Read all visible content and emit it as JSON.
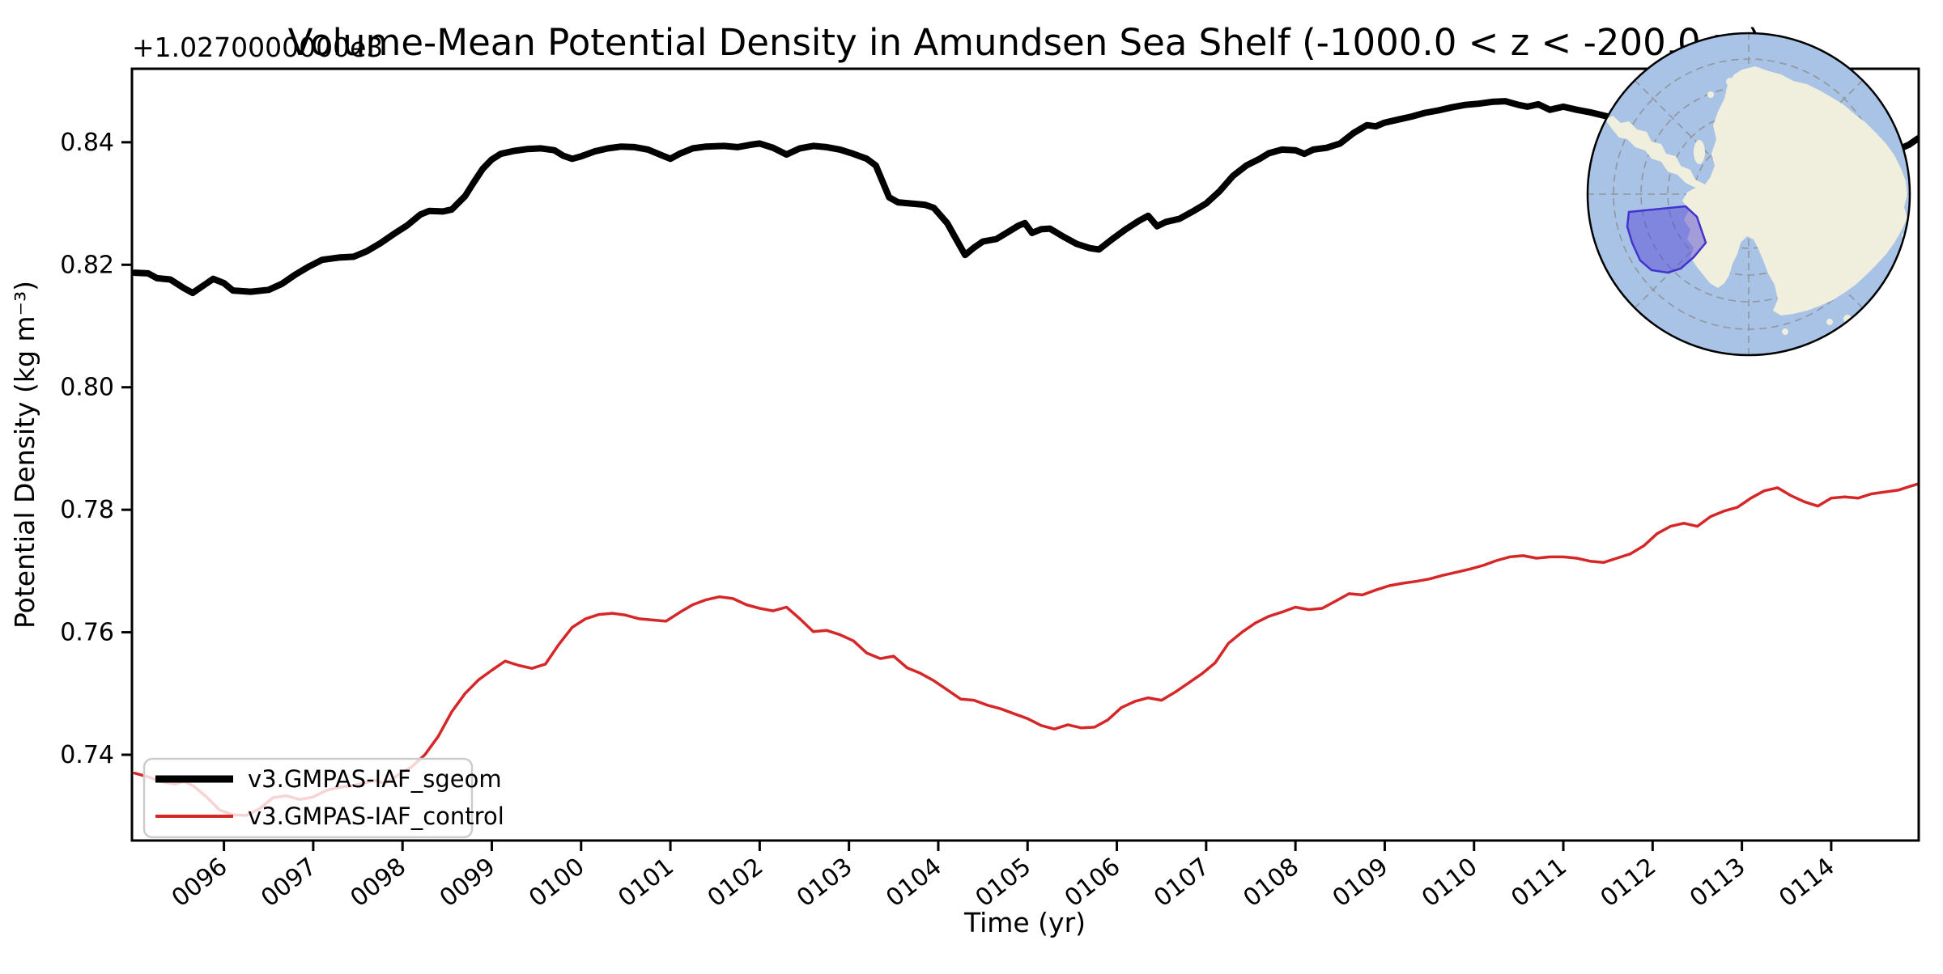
{
  "chart_data": {
    "type": "line",
    "title": "Volume-Mean Potential Density in Amundsen Sea Shelf (-1000.0 < z < -200.0 m)",
    "xlabel": "Time (yr)",
    "ylabel": "Potential Density (kg m⁻³)",
    "y_offset_text": "+1.0270000000e3",
    "grid": false,
    "legend_position": "lower-left",
    "xlim": [
      94.97,
      114.98
    ],
    "ylim": [
      0.726,
      0.852
    ],
    "x_tick_rotation_deg": -38,
    "x_ticks": [
      {
        "label": "0096",
        "value": 96
      },
      {
        "label": "0097",
        "value": 97
      },
      {
        "label": "0098",
        "value": 98
      },
      {
        "label": "0099",
        "value": 99
      },
      {
        "label": "0100",
        "value": 100
      },
      {
        "label": "0101",
        "value": 101
      },
      {
        "label": "0102",
        "value": 102
      },
      {
        "label": "0103",
        "value": 103
      },
      {
        "label": "0104",
        "value": 104
      },
      {
        "label": "0105",
        "value": 105
      },
      {
        "label": "0106",
        "value": 106
      },
      {
        "label": "0107",
        "value": 107
      },
      {
        "label": "0108",
        "value": 108
      },
      {
        "label": "0109",
        "value": 109
      },
      {
        "label": "0110",
        "value": 110
      },
      {
        "label": "0111",
        "value": 111
      },
      {
        "label": "0112",
        "value": 112
      },
      {
        "label": "0113",
        "value": 113
      },
      {
        "label": "0114",
        "value": 114
      }
    ],
    "y_ticks": [
      {
        "label": "0.84",
        "value": 0.84
      },
      {
        "label": "0.82",
        "value": 0.82
      },
      {
        "label": "0.80",
        "value": 0.8
      },
      {
        "label": "0.78",
        "value": 0.78
      },
      {
        "label": "0.76",
        "value": 0.76
      },
      {
        "label": "0.74",
        "value": 0.74
      }
    ],
    "y_value_offset": 1027.0,
    "series": [
      {
        "name": "v3.GMPAS-IAF_sgeom",
        "color": "#000000",
        "linewidth": 8,
        "points": [
          [
            95.0,
            0.8187
          ],
          [
            95.15,
            0.8186
          ],
          [
            95.25,
            0.8178
          ],
          [
            95.4,
            0.8176
          ],
          [
            95.55,
            0.8162
          ],
          [
            95.65,
            0.8154
          ],
          [
            95.75,
            0.8164
          ],
          [
            95.88,
            0.8177
          ],
          [
            96.0,
            0.817
          ],
          [
            96.1,
            0.8158
          ],
          [
            96.3,
            0.8156
          ],
          [
            96.5,
            0.8159
          ],
          [
            96.65,
            0.8169
          ],
          [
            96.8,
            0.8184
          ],
          [
            96.95,
            0.8197
          ],
          [
            97.1,
            0.8208
          ],
          [
            97.3,
            0.8212
          ],
          [
            97.45,
            0.8213
          ],
          [
            97.6,
            0.8222
          ],
          [
            97.75,
            0.8235
          ],
          [
            97.9,
            0.825
          ],
          [
            98.05,
            0.8264
          ],
          [
            98.2,
            0.8282
          ],
          [
            98.3,
            0.8288
          ],
          [
            98.45,
            0.8287
          ],
          [
            98.55,
            0.829
          ],
          [
            98.7,
            0.8312
          ],
          [
            98.8,
            0.8335
          ],
          [
            98.9,
            0.8357
          ],
          [
            99.0,
            0.8372
          ],
          [
            99.1,
            0.8381
          ],
          [
            99.25,
            0.8386
          ],
          [
            99.4,
            0.8389
          ],
          [
            99.55,
            0.839
          ],
          [
            99.7,
            0.8387
          ],
          [
            99.8,
            0.8378
          ],
          [
            99.9,
            0.8373
          ],
          [
            100.0,
            0.8377
          ],
          [
            100.15,
            0.8385
          ],
          [
            100.3,
            0.839
          ],
          [
            100.45,
            0.8393
          ],
          [
            100.6,
            0.8392
          ],
          [
            100.75,
            0.8388
          ],
          [
            100.9,
            0.8379
          ],
          [
            101.0,
            0.8373
          ],
          [
            101.1,
            0.8381
          ],
          [
            101.25,
            0.839
          ],
          [
            101.4,
            0.8393
          ],
          [
            101.6,
            0.8394
          ],
          [
            101.75,
            0.8392
          ],
          [
            101.9,
            0.8396
          ],
          [
            102.0,
            0.8398
          ],
          [
            102.15,
            0.8391
          ],
          [
            102.3,
            0.838
          ],
          [
            102.45,
            0.839
          ],
          [
            102.6,
            0.8394
          ],
          [
            102.75,
            0.8392
          ],
          [
            102.9,
            0.8388
          ],
          [
            103.05,
            0.8381
          ],
          [
            103.2,
            0.8373
          ],
          [
            103.3,
            0.8362
          ],
          [
            103.45,
            0.831
          ],
          [
            103.55,
            0.8302
          ],
          [
            103.7,
            0.83
          ],
          [
            103.85,
            0.8298
          ],
          [
            103.95,
            0.8293
          ],
          [
            104.1,
            0.8268
          ],
          [
            104.2,
            0.8242
          ],
          [
            104.3,
            0.8216
          ],
          [
            104.4,
            0.8228
          ],
          [
            104.5,
            0.8238
          ],
          [
            104.65,
            0.8242
          ],
          [
            104.8,
            0.8255
          ],
          [
            104.9,
            0.8264
          ],
          [
            104.97,
            0.8268
          ],
          [
            105.05,
            0.8252
          ],
          [
            105.15,
            0.8258
          ],
          [
            105.25,
            0.8259
          ],
          [
            105.4,
            0.8246
          ],
          [
            105.55,
            0.8234
          ],
          [
            105.7,
            0.8227
          ],
          [
            105.8,
            0.8225
          ],
          [
            105.95,
            0.8242
          ],
          [
            106.1,
            0.8258
          ],
          [
            106.25,
            0.8272
          ],
          [
            106.35,
            0.828
          ],
          [
            106.45,
            0.8263
          ],
          [
            106.55,
            0.827
          ],
          [
            106.7,
            0.8275
          ],
          [
            106.85,
            0.8287
          ],
          [
            107.0,
            0.83
          ],
          [
            107.15,
            0.832
          ],
          [
            107.3,
            0.8345
          ],
          [
            107.45,
            0.8362
          ],
          [
            107.6,
            0.8373
          ],
          [
            107.7,
            0.8382
          ],
          [
            107.85,
            0.8388
          ],
          [
            108.0,
            0.8387
          ],
          [
            108.1,
            0.8381
          ],
          [
            108.2,
            0.8388
          ],
          [
            108.35,
            0.8391
          ],
          [
            108.5,
            0.8398
          ],
          [
            108.65,
            0.8415
          ],
          [
            108.8,
            0.8428
          ],
          [
            108.9,
            0.8426
          ],
          [
            109.0,
            0.8432
          ],
          [
            109.15,
            0.8437
          ],
          [
            109.3,
            0.8442
          ],
          [
            109.45,
            0.8448
          ],
          [
            109.6,
            0.8452
          ],
          [
            109.75,
            0.8457
          ],
          [
            109.9,
            0.8461
          ],
          [
            110.05,
            0.8463
          ],
          [
            110.2,
            0.8466
          ],
          [
            110.35,
            0.8467
          ],
          [
            110.5,
            0.8461
          ],
          [
            110.6,
            0.8458
          ],
          [
            110.72,
            0.8462
          ],
          [
            110.85,
            0.8453
          ],
          [
            111.0,
            0.8458
          ],
          [
            111.15,
            0.8453
          ],
          [
            111.3,
            0.8449
          ],
          [
            111.5,
            0.8442
          ],
          [
            111.7,
            0.8435
          ],
          [
            112.0,
            0.8424
          ],
          [
            112.4,
            0.8412
          ],
          [
            112.8,
            0.84
          ],
          [
            113.2,
            0.8392
          ],
          [
            113.6,
            0.8386
          ],
          [
            114.0,
            0.8382
          ],
          [
            114.3,
            0.838
          ],
          [
            114.55,
            0.8382
          ],
          [
            114.75,
            0.8388
          ],
          [
            114.87,
            0.8396
          ],
          [
            114.97,
            0.8406
          ]
        ]
      },
      {
        "name": "v3.GMPAS-IAF_control",
        "color": "#d62728",
        "linewidth": 3.5,
        "points": [
          [
            95.0,
            0.737
          ],
          [
            95.15,
            0.7364
          ],
          [
            95.3,
            0.7356
          ],
          [
            95.45,
            0.7352
          ],
          [
            95.55,
            0.7356
          ],
          [
            95.65,
            0.735
          ],
          [
            95.8,
            0.7332
          ],
          [
            95.95,
            0.731
          ],
          [
            96.1,
            0.7302
          ],
          [
            96.25,
            0.7301
          ],
          [
            96.4,
            0.7312
          ],
          [
            96.55,
            0.733
          ],
          [
            96.7,
            0.7333
          ],
          [
            96.85,
            0.7327
          ],
          [
            97.0,
            0.7331
          ],
          [
            97.15,
            0.7342
          ],
          [
            97.3,
            0.7347
          ],
          [
            97.45,
            0.735
          ],
          [
            97.6,
            0.7355
          ],
          [
            97.7,
            0.7358
          ],
          [
            97.8,
            0.7353
          ],
          [
            97.95,
            0.7367
          ],
          [
            98.1,
            0.738
          ],
          [
            98.25,
            0.74
          ],
          [
            98.4,
            0.743
          ],
          [
            98.55,
            0.747
          ],
          [
            98.7,
            0.75
          ],
          [
            98.85,
            0.7522
          ],
          [
            99.0,
            0.7538
          ],
          [
            99.15,
            0.7553
          ],
          [
            99.3,
            0.7546
          ],
          [
            99.45,
            0.7541
          ],
          [
            99.6,
            0.7548
          ],
          [
            99.75,
            0.758
          ],
          [
            99.9,
            0.7608
          ],
          [
            100.05,
            0.7622
          ],
          [
            100.2,
            0.7629
          ],
          [
            100.35,
            0.7631
          ],
          [
            100.5,
            0.7628
          ],
          [
            100.65,
            0.7622
          ],
          [
            100.8,
            0.762
          ],
          [
            100.95,
            0.7618
          ],
          [
            101.1,
            0.7632
          ],
          [
            101.25,
            0.7645
          ],
          [
            101.4,
            0.7653
          ],
          [
            101.55,
            0.7658
          ],
          [
            101.7,
            0.7655
          ],
          [
            101.85,
            0.7645
          ],
          [
            102.0,
            0.7639
          ],
          [
            102.15,
            0.7635
          ],
          [
            102.3,
            0.7641
          ],
          [
            102.45,
            0.7622
          ],
          [
            102.6,
            0.7601
          ],
          [
            102.75,
            0.7603
          ],
          [
            102.9,
            0.7596
          ],
          [
            103.05,
            0.7586
          ],
          [
            103.2,
            0.7566
          ],
          [
            103.35,
            0.7557
          ],
          [
            103.5,
            0.7561
          ],
          [
            103.65,
            0.7542
          ],
          [
            103.8,
            0.7533
          ],
          [
            103.95,
            0.7521
          ],
          [
            104.1,
            0.7506
          ],
          [
            104.25,
            0.7491
          ],
          [
            104.4,
            0.7489
          ],
          [
            104.55,
            0.7481
          ],
          [
            104.7,
            0.7475
          ],
          [
            104.85,
            0.7467
          ],
          [
            105.0,
            0.7459
          ],
          [
            105.15,
            0.7448
          ],
          [
            105.3,
            0.7442
          ],
          [
            105.45,
            0.7449
          ],
          [
            105.6,
            0.7444
          ],
          [
            105.75,
            0.7445
          ],
          [
            105.9,
            0.7457
          ],
          [
            106.05,
            0.7477
          ],
          [
            106.2,
            0.7487
          ],
          [
            106.35,
            0.7493
          ],
          [
            106.5,
            0.7489
          ],
          [
            106.65,
            0.7502
          ],
          [
            106.8,
            0.7517
          ],
          [
            106.95,
            0.7532
          ],
          [
            107.1,
            0.755
          ],
          [
            107.25,
            0.7582
          ],
          [
            107.4,
            0.76
          ],
          [
            107.55,
            0.7615
          ],
          [
            107.7,
            0.7626
          ],
          [
            107.85,
            0.7633
          ],
          [
            108.0,
            0.7641
          ],
          [
            108.15,
            0.7637
          ],
          [
            108.3,
            0.7639
          ],
          [
            108.45,
            0.7651
          ],
          [
            108.6,
            0.7663
          ],
          [
            108.75,
            0.7661
          ],
          [
            108.9,
            0.7669
          ],
          [
            109.05,
            0.7676
          ],
          [
            109.2,
            0.768
          ],
          [
            109.35,
            0.7683
          ],
          [
            109.5,
            0.7687
          ],
          [
            109.65,
            0.7693
          ],
          [
            109.8,
            0.7698
          ],
          [
            109.95,
            0.7703
          ],
          [
            110.1,
            0.7709
          ],
          [
            110.25,
            0.7717
          ],
          [
            110.4,
            0.7723
          ],
          [
            110.55,
            0.7725
          ],
          [
            110.7,
            0.7721
          ],
          [
            110.85,
            0.7723
          ],
          [
            111.0,
            0.7723
          ],
          [
            111.15,
            0.7721
          ],
          [
            111.3,
            0.7716
          ],
          [
            111.45,
            0.7714
          ],
          [
            111.6,
            0.7721
          ],
          [
            111.75,
            0.7728
          ],
          [
            111.9,
            0.7741
          ],
          [
            112.05,
            0.7761
          ],
          [
            112.2,
            0.7773
          ],
          [
            112.35,
            0.7778
          ],
          [
            112.5,
            0.7773
          ],
          [
            112.65,
            0.7789
          ],
          [
            112.8,
            0.7798
          ],
          [
            112.95,
            0.7804
          ],
          [
            113.1,
            0.7819
          ],
          [
            113.25,
            0.7831
          ],
          [
            113.4,
            0.7836
          ],
          [
            113.55,
            0.7823
          ],
          [
            113.7,
            0.7813
          ],
          [
            113.85,
            0.7806
          ],
          [
            114.0,
            0.7819
          ],
          [
            114.15,
            0.7821
          ],
          [
            114.3,
            0.7819
          ],
          [
            114.45,
            0.7826
          ],
          [
            114.6,
            0.7829
          ],
          [
            114.75,
            0.7832
          ],
          [
            114.9,
            0.7839
          ],
          [
            114.97,
            0.7842
          ]
        ]
      }
    ]
  },
  "legend": {
    "background_opacity": 0.8,
    "border_color": "#cccccc"
  },
  "inset_map": {
    "description": "south-polar-stereographic map of Antarctica with highlighted Amundsen Sea Shelf region",
    "ocean_color": "#a8c3e6",
    "land_color": "#f0eedc",
    "region_fill": "rgba(88,72,214,0.5)",
    "region_edge": "#4034cc",
    "graticule_color": "#8f8f8f",
    "border_color": "#000000"
  }
}
